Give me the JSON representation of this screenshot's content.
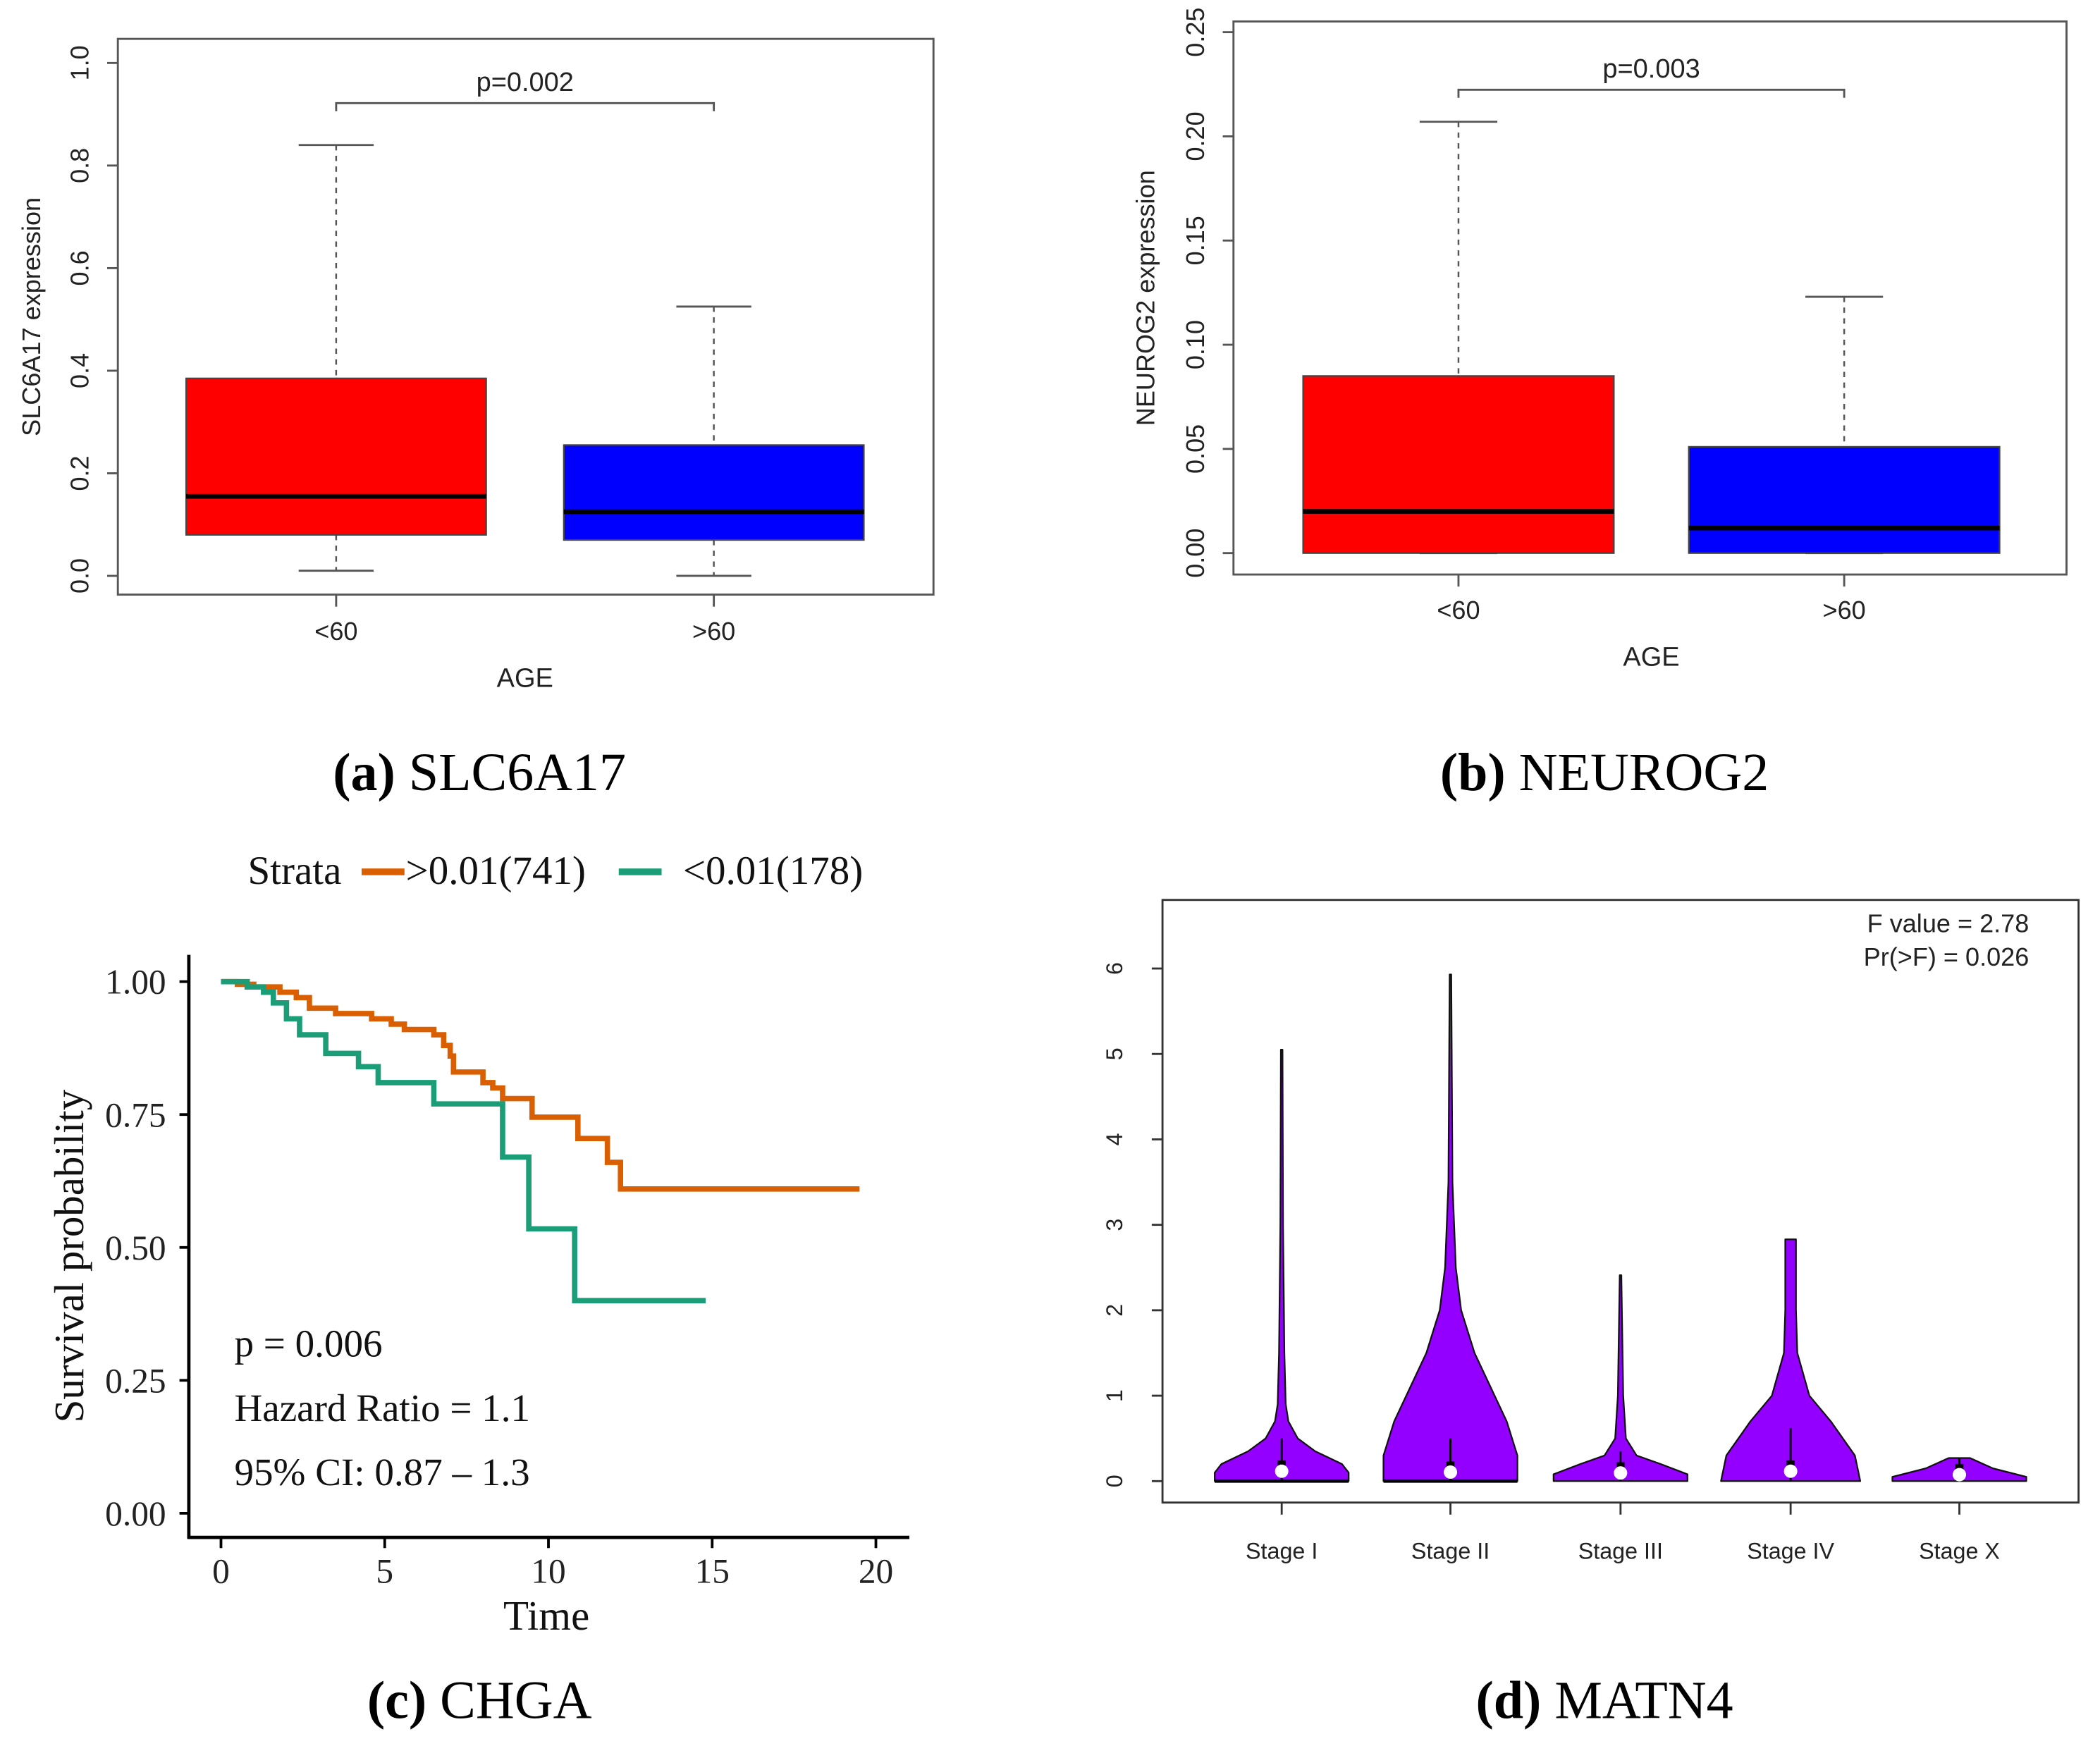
{
  "chart_data": [
    {
      "panel": "a",
      "type": "box",
      "caption_letter": "(a)",
      "caption_text": "SLC6A17",
      "xlabel": "AGE",
      "ylabel": "SLC6A17 expression",
      "ylim": [
        0,
        1.0
      ],
      "yticks": [
        "0.0",
        "0.2",
        "0.4",
        "0.6",
        "0.8",
        "1.0"
      ],
      "categories": [
        "<60",
        ">60"
      ],
      "annotation": "p=0.002",
      "boxes": [
        {
          "category": "<60",
          "min": 0.01,
          "q1": 0.08,
          "median": 0.155,
          "q3": 0.385,
          "max": 0.84,
          "color": "#ff0000"
        },
        {
          "category": ">60",
          "min": 0.0,
          "q1": 0.07,
          "median": 0.125,
          "q3": 0.255,
          "max": 0.525,
          "color": "#0000ff"
        }
      ]
    },
    {
      "panel": "b",
      "type": "box",
      "caption_letter": "(b)",
      "caption_text": "NEUROG2",
      "xlabel": "AGE",
      "ylabel": "NEUROG2 expression",
      "ylim": [
        0,
        0.25
      ],
      "yticks": [
        "0.00",
        "0.05",
        "0.10",
        "0.15",
        "0.20",
        "0.25"
      ],
      "categories": [
        "<60",
        ">60"
      ],
      "annotation": "p=0.003",
      "boxes": [
        {
          "category": "<60",
          "min": 0.0,
          "q1": 0.0,
          "median": 0.02,
          "q3": 0.085,
          "max": 0.207,
          "color": "#ff0000"
        },
        {
          "category": ">60",
          "min": 0.0,
          "q1": 0.0,
          "median": 0.012,
          "q3": 0.051,
          "max": 0.123,
          "color": "#0000ff"
        }
      ]
    },
    {
      "panel": "c",
      "type": "line",
      "subtype": "kaplan-meier",
      "caption_letter": "(c)",
      "caption_text": "CHGA",
      "xlabel": "Time",
      "ylabel": "Survival probability",
      "xlim": [
        0,
        20
      ],
      "ylim": [
        0,
        1
      ],
      "xticks": [
        "0",
        "5",
        "10",
        "15",
        "20"
      ],
      "yticks": [
        "0.00",
        "0.25",
        "0.50",
        "0.75",
        "1.00"
      ],
      "legend_title": "Strata",
      "legend_position": "top",
      "annotations": [
        "p = 0.006",
        "Hazard Ratio = 1.1",
        "95% CI: 0.87 – 1.3"
      ],
      "series": [
        {
          "name": ">0.01(741)",
          "color": "#d95f02",
          "steps": [
            [
              0,
              1.0
            ],
            [
              0.5,
              0.995
            ],
            [
              1.0,
              0.99
            ],
            [
              1.8,
              0.98
            ],
            [
              2.3,
              0.97
            ],
            [
              2.7,
              0.95
            ],
            [
              3.5,
              0.94
            ],
            [
              4.6,
              0.93
            ],
            [
              5.2,
              0.92
            ],
            [
              5.6,
              0.91
            ],
            [
              6.5,
              0.9
            ],
            [
              6.8,
              0.88
            ],
            [
              7.0,
              0.86
            ],
            [
              7.1,
              0.83
            ],
            [
              8.0,
              0.81
            ],
            [
              8.3,
              0.8
            ],
            [
              8.6,
              0.78
            ],
            [
              9.5,
              0.745
            ],
            [
              10.9,
              0.705
            ],
            [
              11.8,
              0.66
            ],
            [
              12.2,
              0.61
            ]
          ],
          "end": 19.5
        },
        {
          "name": "<0.01(178)",
          "color": "#1b9e77",
          "steps": [
            [
              0,
              1.0
            ],
            [
              0.8,
              0.99
            ],
            [
              1.3,
              0.98
            ],
            [
              1.6,
              0.96
            ],
            [
              2.0,
              0.93
            ],
            [
              2.4,
              0.9
            ],
            [
              3.2,
              0.865
            ],
            [
              4.2,
              0.84
            ],
            [
              4.8,
              0.81
            ],
            [
              6.5,
              0.77
            ],
            [
              8.6,
              0.67
            ],
            [
              9.4,
              0.535
            ],
            [
              10.8,
              0.4
            ]
          ],
          "end": 14.8
        }
      ]
    },
    {
      "panel": "d",
      "type": "violin",
      "caption_letter": "(d)",
      "caption_text": "MATN4",
      "ylim": [
        0,
        6.5
      ],
      "yticks": [
        "0",
        "1",
        "2",
        "3",
        "4",
        "5",
        "6"
      ],
      "categories": [
        "Stage I",
        "Stage II",
        "Stage III",
        "Stage IV",
        "Stage X"
      ],
      "annotations": [
        "F value = 2.78",
        "Pr(>F) = 0.026"
      ],
      "color": "#9400ff",
      "violins": [
        {
          "category": "Stage I",
          "min": 0,
          "median": 0.1,
          "whisker_top": 0.5,
          "max": 5.05
        },
        {
          "category": "Stage II",
          "min": 0,
          "median": 0.09,
          "whisker_top": 0.5,
          "max": 5.93
        },
        {
          "category": "Stage III",
          "min": 0,
          "median": 0.08,
          "whisker_top": 0.35,
          "max": 2.41
        },
        {
          "category": "Stage IV",
          "min": 0,
          "median": 0.1,
          "whisker_top": 0.62,
          "max": 2.83
        },
        {
          "category": "Stage X",
          "min": 0,
          "median": 0.06,
          "whisker_top": 0.27,
          "max": 0.27
        }
      ]
    }
  ]
}
